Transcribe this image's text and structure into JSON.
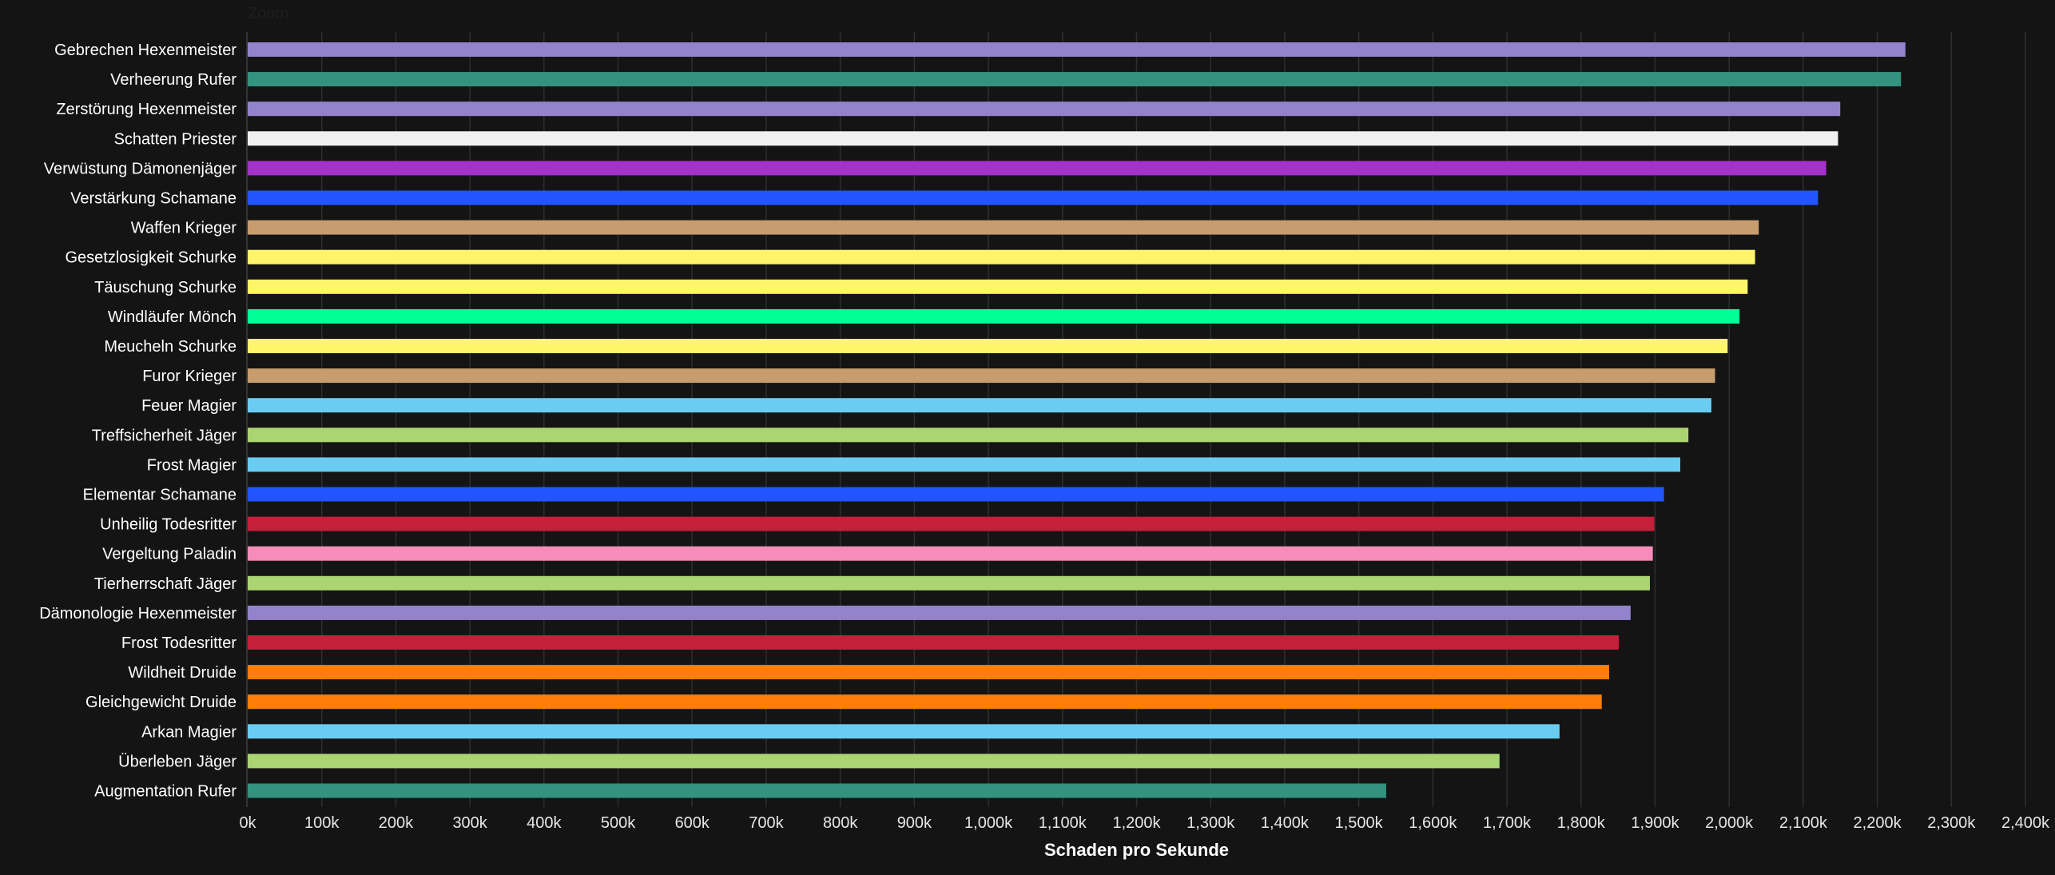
{
  "zoom_label": "Zoom",
  "chart_data": {
    "type": "bar",
    "orientation": "horizontal",
    "title": "",
    "xlabel": "Schaden pro Sekunde",
    "ylabel": "",
    "xlim": [
      0,
      2400
    ],
    "unit_suffix": "k",
    "xticks": [
      "0k",
      "100k",
      "200k",
      "300k",
      "400k",
      "500k",
      "600k",
      "700k",
      "800k",
      "900k",
      "1,000k",
      "1,100k",
      "1,200k",
      "1,300k",
      "1,400k",
      "1,500k",
      "1,600k",
      "1,700k",
      "1,800k",
      "1,900k",
      "2,000k",
      "2,100k",
      "2,200k",
      "2,300k",
      "2,400k"
    ],
    "grid": true,
    "legend": "none",
    "categories": [
      "Gebrechen Hexenmeister",
      "Verheerung Rufer",
      "Zerstörung Hexenmeister",
      "Schatten Priester",
      "Verwüstung Dämonenjäger",
      "Verstärkung Schamane",
      "Waffen Krieger",
      "Gesetzlosigkeit Schurke",
      "Täuschung Schurke",
      "Windläufer Mönch",
      "Meucheln Schurke",
      "Furor Krieger",
      "Feuer Magier",
      "Treffsicherheit Jäger",
      "Frost Magier",
      "Elementar Schamane",
      "Unheilig Todesritter",
      "Vergeltung Paladin",
      "Tierherrschaft Jäger",
      "Dämonologie Hexenmeister",
      "Frost Todesritter",
      "Wildheit Druide",
      "Gleichgewicht Druide",
      "Arkan Magier",
      "Überleben Jäger",
      "Augmentation Rufer"
    ],
    "values": [
      2238,
      2232,
      2150,
      2147,
      2131,
      2120,
      2040,
      2035,
      2025,
      2014,
      1998,
      1981,
      1976,
      1945,
      1934,
      1912,
      1899,
      1897,
      1893,
      1867,
      1851,
      1838,
      1828,
      1771,
      1690,
      1537
    ],
    "colors": [
      "#8788ee",
      "#33937f",
      "#8788ee",
      "#f0ebe0",
      "#a330c9",
      "#0070dd",
      "#c69b6d",
      "#fff468",
      "#fff468",
      "#00ff98",
      "#fff468",
      "#c69b6d",
      "#3fc7eb",
      "#aad372",
      "#3fc7eb",
      "#0070dd",
      "#c41e3a",
      "#f48cba",
      "#aad372",
      "#8788ee",
      "#c41e3a",
      "#ff7c0a",
      "#ff7c0a",
      "#3fc7eb",
      "#aad372",
      "#33937f"
    ],
    "colors_rendered": [
      "#9283cc",
      "#33937f",
      "#9283cc",
      "#f0f0f0",
      "#a332c9",
      "#2255ff",
      "#c79c6e",
      "#fff569",
      "#fff569",
      "#00ff96",
      "#fff569",
      "#c79c6e",
      "#69ccf0",
      "#abd473",
      "#69ccf0",
      "#2255ff",
      "#c41f3b",
      "#f58cba",
      "#abd473",
      "#9283cc",
      "#c41f3b",
      "#ff7d0a",
      "#ff7d0a",
      "#69ccf0",
      "#abd473",
      "#33937f"
    ]
  }
}
